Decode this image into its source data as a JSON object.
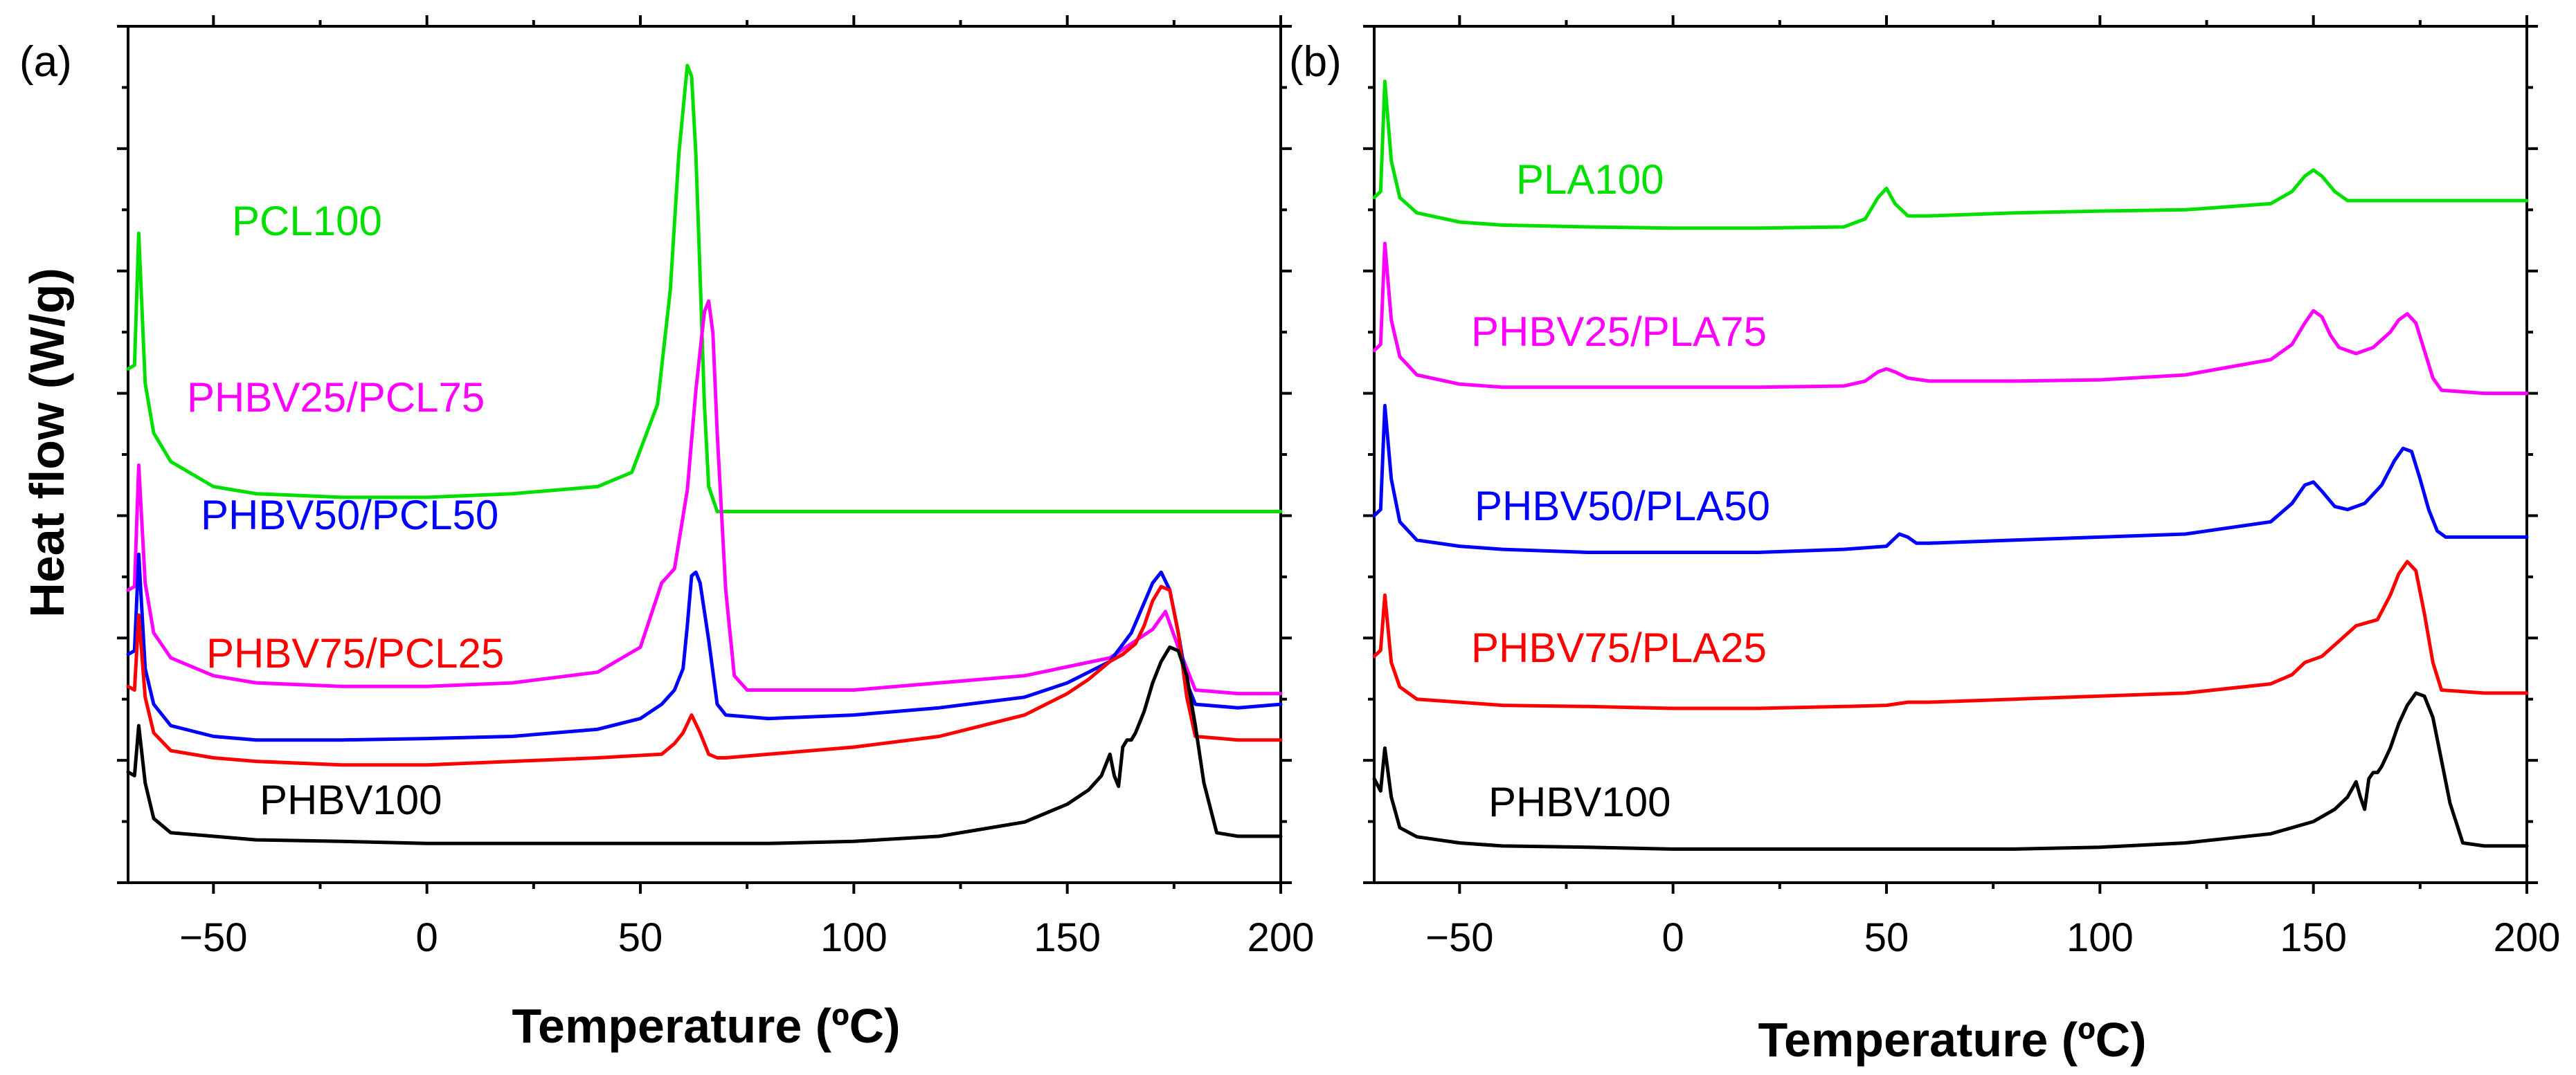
{
  "figure": {
    "ylabel": "Heat flow (W/g)",
    "xlabel": "Temperature (ºC)"
  },
  "chart_data": [
    {
      "type": "line",
      "panel": "(a)",
      "xlabel": "Temperature (ºC)",
      "ylabel": "Heat flow (W/g)",
      "xlim": [
        -70,
        200
      ],
      "xticks": [
        "−50",
        "0",
        "50",
        "100",
        "150",
        "200"
      ],
      "yticks": "unlabeled",
      "series": [
        {
          "name": "PCL100",
          "color": "#00e000",
          "x": [
            -70,
            -68.5,
            -67.5,
            -66,
            -64,
            -60,
            -50,
            -40,
            -20,
            0,
            20,
            40,
            48,
            54,
            57,
            59,
            61,
            62,
            63,
            64,
            65,
            66,
            68,
            70,
            80,
            100,
            150,
            200
          ],
          "y": [
            4.2,
            4.25,
            6.1,
            4.0,
            3.3,
            2.9,
            2.55,
            2.45,
            2.4,
            2.4,
            2.45,
            2.55,
            2.75,
            3.7,
            5.3,
            7.2,
            8.45,
            8.3,
            7.2,
            5.5,
            3.7,
            2.55,
            2.2,
            2.2,
            2.2,
            2.2,
            2.2,
            2.2
          ]
        },
        {
          "name": "PHBV25/PCL75",
          "color": "#ff00ff",
          "x": [
            -70,
            -68.5,
            -67.5,
            -66,
            -64,
            -60,
            -50,
            -40,
            -20,
            0,
            20,
            40,
            50,
            55,
            58,
            61,
            63,
            65,
            66,
            67,
            68,
            70,
            72,
            75,
            80,
            100,
            140,
            160,
            165,
            170,
            173,
            176,
            180,
            190,
            200
          ],
          "y": [
            1.1,
            1.15,
            2.85,
            1.2,
            0.5,
            0.15,
            -0.1,
            -0.2,
            -0.25,
            -0.25,
            -0.2,
            -0.05,
            0.3,
            1.2,
            1.4,
            2.5,
            3.9,
            5.0,
            5.15,
            4.7,
            3.3,
            1.1,
            -0.1,
            -0.3,
            -0.3,
            -0.3,
            -0.1,
            0.15,
            0.35,
            0.55,
            0.8,
            0.3,
            -0.3,
            -0.35,
            -0.35
          ]
        },
        {
          "name": "PHBV50/PCL50",
          "color": "#0000ff",
          "x": [
            -70,
            -68.5,
            -67.5,
            -66,
            -64,
            -60,
            -50,
            -40,
            -20,
            0,
            20,
            40,
            50,
            55,
            58,
            60,
            61,
            62,
            63,
            64,
            66,
            68,
            70,
            80,
            100,
            120,
            140,
            150,
            160,
            165,
            170,
            172,
            174,
            176,
            178,
            180,
            190,
            200
          ],
          "y": [
            0.2,
            0.25,
            1.6,
            0.0,
            -0.5,
            -0.8,
            -0.95,
            -1.0,
            -1.0,
            -0.98,
            -0.95,
            -0.85,
            -0.7,
            -0.5,
            -0.3,
            0.0,
            0.6,
            1.3,
            1.35,
            1.2,
            0.4,
            -0.5,
            -0.65,
            -0.7,
            -0.65,
            -0.55,
            -0.4,
            -0.2,
            0.1,
            0.5,
            1.2,
            1.35,
            1.1,
            0.5,
            -0.2,
            -0.5,
            -0.55,
            -0.5
          ]
        },
        {
          "name": "PHBV75/PCL25",
          "color": "#ff0000",
          "x": [
            -70,
            -68.5,
            -67.5,
            -66,
            -64,
            -60,
            -50,
            -40,
            -20,
            0,
            20,
            40,
            55,
            58,
            60,
            62,
            64,
            66,
            68,
            70,
            80,
            100,
            120,
            140,
            150,
            155,
            160,
            163,
            166,
            168,
            170,
            172,
            174,
            176,
            178,
            180,
            190,
            200
          ],
          "y": [
            -0.25,
            -0.3,
            0.75,
            -0.4,
            -0.9,
            -1.15,
            -1.25,
            -1.3,
            -1.35,
            -1.35,
            -1.3,
            -1.25,
            -1.2,
            -1.05,
            -0.9,
            -0.65,
            -0.9,
            -1.2,
            -1.25,
            -1.25,
            -1.2,
            -1.1,
            -0.95,
            -0.65,
            -0.35,
            -0.15,
            0.1,
            0.2,
            0.35,
            0.6,
            0.95,
            1.15,
            1.1,
            0.5,
            -0.4,
            -0.95,
            -1.0,
            -1.0
          ]
        },
        {
          "name": "PHBV100",
          "color": "#000000",
          "x": [
            -70,
            -68.5,
            -67.5,
            -66,
            -64,
            -60,
            -50,
            -40,
            -20,
            0,
            20,
            40,
            60,
            80,
            100,
            120,
            140,
            150,
            155,
            158,
            160,
            161,
            162,
            163,
            164,
            165,
            166,
            168,
            170,
            172,
            174,
            176,
            178,
            180,
            182,
            185,
            190,
            200
          ],
          "y": [
            -1.45,
            -1.5,
            -0.8,
            -1.6,
            -2.1,
            -2.3,
            -2.35,
            -2.4,
            -2.42,
            -2.45,
            -2.45,
            -2.45,
            -2.45,
            -2.45,
            -2.42,
            -2.35,
            -2.15,
            -1.9,
            -1.7,
            -1.5,
            -1.2,
            -1.5,
            -1.65,
            -1.1,
            -1.0,
            -1.0,
            -0.9,
            -0.6,
            -0.2,
            0.1,
            0.3,
            0.25,
            -0.1,
            -0.8,
            -1.6,
            -2.3,
            -2.35,
            -2.35
          ]
        }
      ],
      "labels": [
        "PCL100",
        "PHBV25/PCL75",
        "PHBV50/PCL50",
        "PHBV75/PCL25",
        "PHBV100"
      ]
    },
    {
      "type": "line",
      "panel": "(b)",
      "xlabel": "Temperature (ºC)",
      "xlim": [
        -70,
        200
      ],
      "xticks": [
        "−50",
        "0",
        "50",
        "100",
        "150",
        "200"
      ],
      "yticks": "unlabeled",
      "series": [
        {
          "name": "PLA100",
          "color": "#00e000",
          "x": [
            -70,
            -68.5,
            -67.5,
            -66,
            -64,
            -60,
            -50,
            -40,
            -20,
            0,
            20,
            40,
            45,
            48,
            50,
            52,
            55,
            60,
            80,
            100,
            120,
            140,
            145,
            148,
            150,
            152,
            155,
            158,
            170,
            200
          ],
          "y": [
            4.2,
            4.3,
            6.1,
            4.8,
            4.2,
            3.95,
            3.8,
            3.75,
            3.72,
            3.7,
            3.7,
            3.72,
            3.85,
            4.2,
            4.35,
            4.1,
            3.9,
            3.9,
            3.95,
            3.98,
            4.0,
            4.1,
            4.3,
            4.55,
            4.65,
            4.55,
            4.3,
            4.15,
            4.15,
            4.15
          ]
        },
        {
          "name": "PHBV25/PLA75",
          "color": "#ff00ff",
          "x": [
            -70,
            -68.5,
            -67.5,
            -66,
            -64,
            -60,
            -50,
            -40,
            -20,
            0,
            20,
            40,
            45,
            48,
            50,
            52,
            55,
            60,
            80,
            100,
            120,
            140,
            145,
            148,
            150,
            152,
            154,
            156,
            160,
            164,
            168,
            170,
            172,
            174,
            176,
            178,
            180,
            190,
            200
          ],
          "y": [
            1.7,
            1.8,
            3.45,
            2.2,
            1.6,
            1.3,
            1.15,
            1.1,
            1.1,
            1.1,
            1.1,
            1.12,
            1.2,
            1.35,
            1.4,
            1.35,
            1.25,
            1.2,
            1.2,
            1.22,
            1.3,
            1.55,
            1.8,
            2.15,
            2.35,
            2.25,
            1.95,
            1.75,
            1.65,
            1.75,
            2.0,
            2.2,
            2.3,
            2.15,
            1.7,
            1.25,
            1.05,
            1.0,
            1.0
          ]
        },
        {
          "name": "PHBV50/PLA50",
          "color": "#0000ff",
          "x": [
            -70,
            -68.5,
            -67.5,
            -66,
            -64,
            -60,
            -50,
            -40,
            -20,
            0,
            20,
            40,
            50,
            53,
            55,
            57,
            60,
            80,
            100,
            120,
            140,
            145,
            148,
            150,
            152,
            155,
            158,
            162,
            166,
            169,
            171,
            173,
            175,
            177,
            179,
            181,
            190,
            200
          ],
          "y": [
            -1.0,
            -0.9,
            0.8,
            -0.4,
            -1.1,
            -1.4,
            -1.5,
            -1.55,
            -1.6,
            -1.6,
            -1.6,
            -1.55,
            -1.5,
            -1.3,
            -1.35,
            -1.45,
            -1.45,
            -1.4,
            -1.35,
            -1.3,
            -1.1,
            -0.8,
            -0.5,
            -0.45,
            -0.6,
            -0.85,
            -0.9,
            -0.8,
            -0.5,
            -0.1,
            0.1,
            0.05,
            -0.4,
            -0.9,
            -1.25,
            -1.35,
            -1.35,
            -1.35
          ]
        },
        {
          "name": "PHBV75/PLA25",
          "color": "#ff0000",
          "x": [
            -70,
            -68.5,
            -67.5,
            -66,
            -64,
            -60,
            -50,
            -40,
            -20,
            0,
            20,
            40,
            50,
            55,
            60,
            80,
            100,
            120,
            140,
            145,
            148,
            152,
            156,
            160,
            165,
            168,
            170,
            172,
            174,
            176,
            178,
            180,
            190,
            200
          ],
          "y": [
            -3.3,
            -3.2,
            -2.3,
            -3.4,
            -3.8,
            -4.0,
            -4.05,
            -4.1,
            -4.12,
            -4.15,
            -4.15,
            -4.12,
            -4.1,
            -4.05,
            -4.05,
            -4.0,
            -3.95,
            -3.9,
            -3.75,
            -3.6,
            -3.4,
            -3.3,
            -3.05,
            -2.8,
            -2.7,
            -2.3,
            -1.95,
            -1.75,
            -1.9,
            -2.6,
            -3.4,
            -3.85,
            -3.9,
            -3.9
          ]
        },
        {
          "name": "PHBV100",
          "color": "#000000",
          "x": [
            -70,
            -68.5,
            -67.5,
            -66,
            -64,
            -60,
            -50,
            -40,
            -20,
            0,
            20,
            40,
            60,
            80,
            100,
            120,
            140,
            150,
            155,
            158,
            160,
            161,
            162,
            163,
            164,
            165,
            166,
            168,
            170,
            172,
            174,
            176,
            178,
            180,
            182,
            185,
            190,
            200
          ],
          "y": [
            -5.3,
            -5.5,
            -4.8,
            -5.6,
            -6.1,
            -6.25,
            -6.35,
            -6.4,
            -6.42,
            -6.45,
            -6.45,
            -6.45,
            -6.45,
            -6.45,
            -6.42,
            -6.35,
            -6.2,
            -6.0,
            -5.8,
            -5.6,
            -5.35,
            -5.6,
            -5.8,
            -5.3,
            -5.2,
            -5.2,
            -5.1,
            -4.8,
            -4.4,
            -4.1,
            -3.9,
            -3.95,
            -4.3,
            -5.0,
            -5.7,
            -6.35,
            -6.4,
            -6.4
          ]
        }
      ],
      "labels": [
        "PLA100",
        "PHBV25/PLA75",
        "PHBV50/PLA50",
        "PHBV75/PLA25",
        "PHBV100"
      ]
    }
  ]
}
